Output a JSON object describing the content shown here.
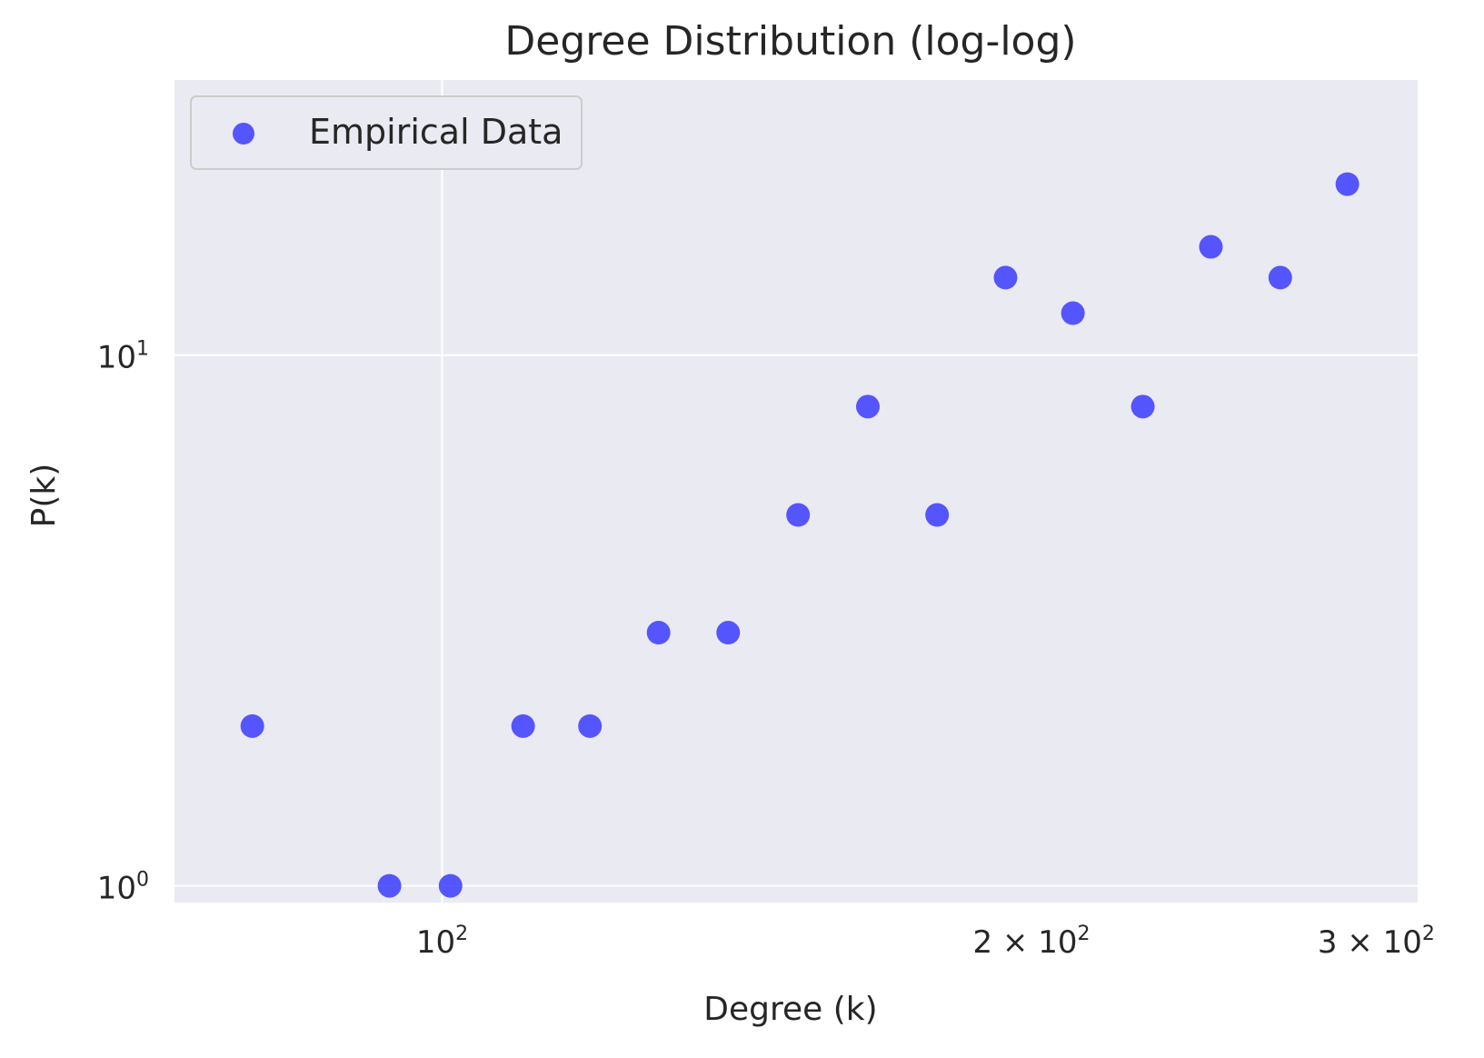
{
  "chart_data": {
    "type": "scatter",
    "title": "Degree Distribution (log-log)",
    "xlabel": "Degree (k)",
    "ylabel": "P(k)",
    "x_scale": "log",
    "y_scale": "log",
    "xlim": [
      73,
      315
    ],
    "ylim": [
      0.93,
      33
    ],
    "grid": true,
    "legend_position": "top-left",
    "background_color": "#eaeaf2",
    "grid_color": "#ffffff",
    "x_ticks": [
      {
        "value": 100,
        "base": "10",
        "exp": "2"
      },
      {
        "value": 200,
        "base": "2 × 10",
        "exp": "2"
      },
      {
        "value": 300,
        "base": "3 × 10",
        "exp": "2"
      }
    ],
    "y_ticks": [
      {
        "value": 1,
        "base": "10",
        "exp": "0"
      },
      {
        "value": 10,
        "base": "10",
        "exp": "1"
      }
    ],
    "series": [
      {
        "name": "Empirical Data",
        "color": "#3b3bff",
        "x": [
          80,
          94,
          101,
          110,
          119,
          129,
          140,
          152,
          165,
          179,
          194,
          210,
          228,
          247,
          268,
          290
        ],
        "y": [
          2,
          1,
          1,
          2,
          2,
          3,
          3,
          5,
          8,
          5,
          14,
          12,
          8,
          16,
          14,
          21
        ]
      }
    ]
  }
}
